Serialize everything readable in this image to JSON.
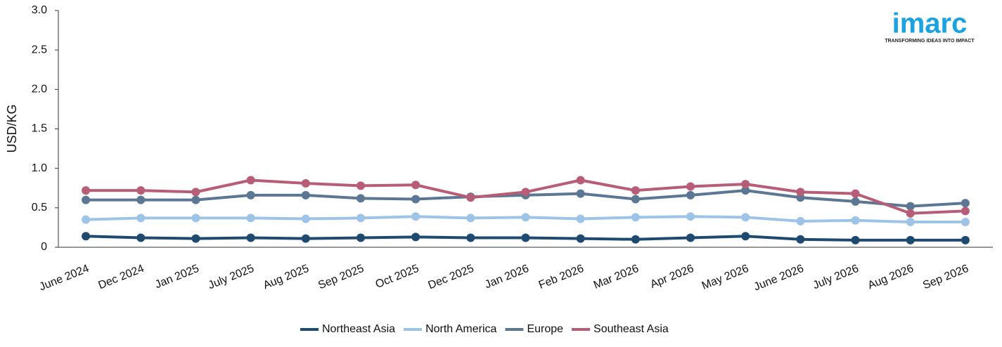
{
  "chart_data": {
    "type": "line",
    "y_label": "USD/KG",
    "categories": [
      "June 2024",
      "Dec 2024",
      "Jan 2025",
      "July 2025",
      "Aug 2025",
      "Sep 2025",
      "Oct 2025",
      "Dec 2025",
      "Jan 2026",
      "Feb 2026",
      "Mar 2026",
      "Apr 2026",
      "May 2026",
      "June 2026",
      "July 2026",
      "Aug 2026",
      "Sep 2026"
    ],
    "series": [
      {
        "name": "Northeast Asia",
        "color": "#1f4a70",
        "values": [
          0.14,
          0.12,
          0.11,
          0.12,
          0.11,
          0.12,
          0.13,
          0.12,
          0.12,
          0.11,
          0.1,
          0.12,
          0.14,
          0.1,
          0.09,
          0.09,
          0.09
        ]
      },
      {
        "name": "North America",
        "color": "#9dc3e6",
        "values": [
          0.35,
          0.37,
          0.37,
          0.37,
          0.36,
          0.37,
          0.39,
          0.37,
          0.38,
          0.36,
          0.38,
          0.39,
          0.38,
          0.33,
          0.34,
          0.32,
          0.32
        ]
      },
      {
        "name": "Europe",
        "color": "#5b7793",
        "values": [
          0.6,
          0.6,
          0.6,
          0.66,
          0.66,
          0.62,
          0.61,
          0.64,
          0.66,
          0.68,
          0.61,
          0.66,
          0.72,
          0.63,
          0.58,
          0.52,
          0.56
        ]
      },
      {
        "name": "Southeast Asia",
        "color": "#b75d77",
        "values": [
          0.72,
          0.72,
          0.7,
          0.85,
          0.81,
          0.78,
          0.79,
          0.63,
          0.7,
          0.85,
          0.72,
          0.77,
          0.8,
          0.7,
          0.68,
          0.43,
          0.46
        ]
      }
    ],
    "ylim": [
      0,
      3
    ],
    "yticks": [
      0,
      0.5,
      {
        "value": 1,
        "label": "1.0"
      },
      1.5,
      {
        "value": 2,
        "label": "2.0"
      },
      2.5,
      {
        "value": 3,
        "label": "3.0"
      }
    ],
    "grid": false,
    "legend": "bottom"
  },
  "logo": {
    "name": "imarc",
    "tagline": "TRANSFORMING IDEAS INTO IMPACT"
  }
}
